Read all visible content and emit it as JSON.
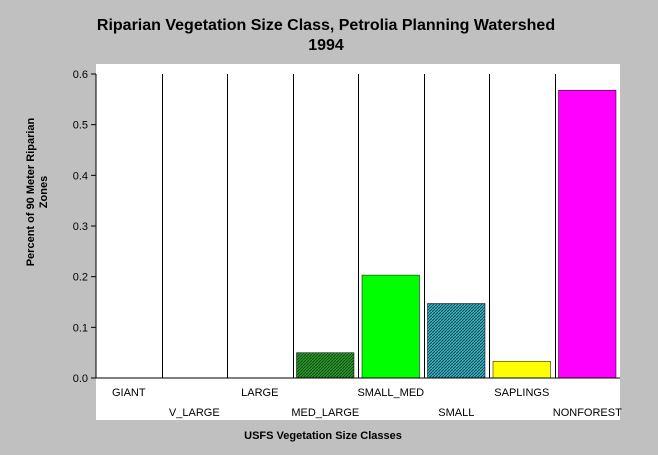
{
  "chart_data": {
    "type": "bar",
    "title_line1": "Riparian Vegetation Size Class, Petrolia Planning Watershed",
    "title_line2": "1994",
    "xlabel": "USFS Vegetation Size Classes",
    "ylabel_line1": "Percent of 90 Meter Riparian",
    "ylabel_line2": "Zones",
    "categories": [
      "GIANT",
      "V_LARGE",
      "LARGE",
      "MED_LARGE",
      "SMALL_MED",
      "SMALL",
      "SAPLINGS",
      "NONFOREST"
    ],
    "values": [
      0,
      0,
      0,
      0.05,
      0.203,
      0.147,
      0.033,
      0.568
    ],
    "colors": [
      "#000000",
      "#000000",
      "#000000",
      "#1f8a1f",
      "#00ff00",
      "#2aa0b0",
      "#ffff00",
      "#ff00ff"
    ],
    "hatched": [
      false,
      false,
      false,
      true,
      false,
      true,
      false,
      false
    ],
    "ylim": [
      0,
      0.6
    ],
    "yticks": [
      "0.0",
      "0.1",
      "0.2",
      "0.3",
      "0.4",
      "0.5",
      "0.6"
    ],
    "grid": "vertical",
    "legend": "none"
  }
}
